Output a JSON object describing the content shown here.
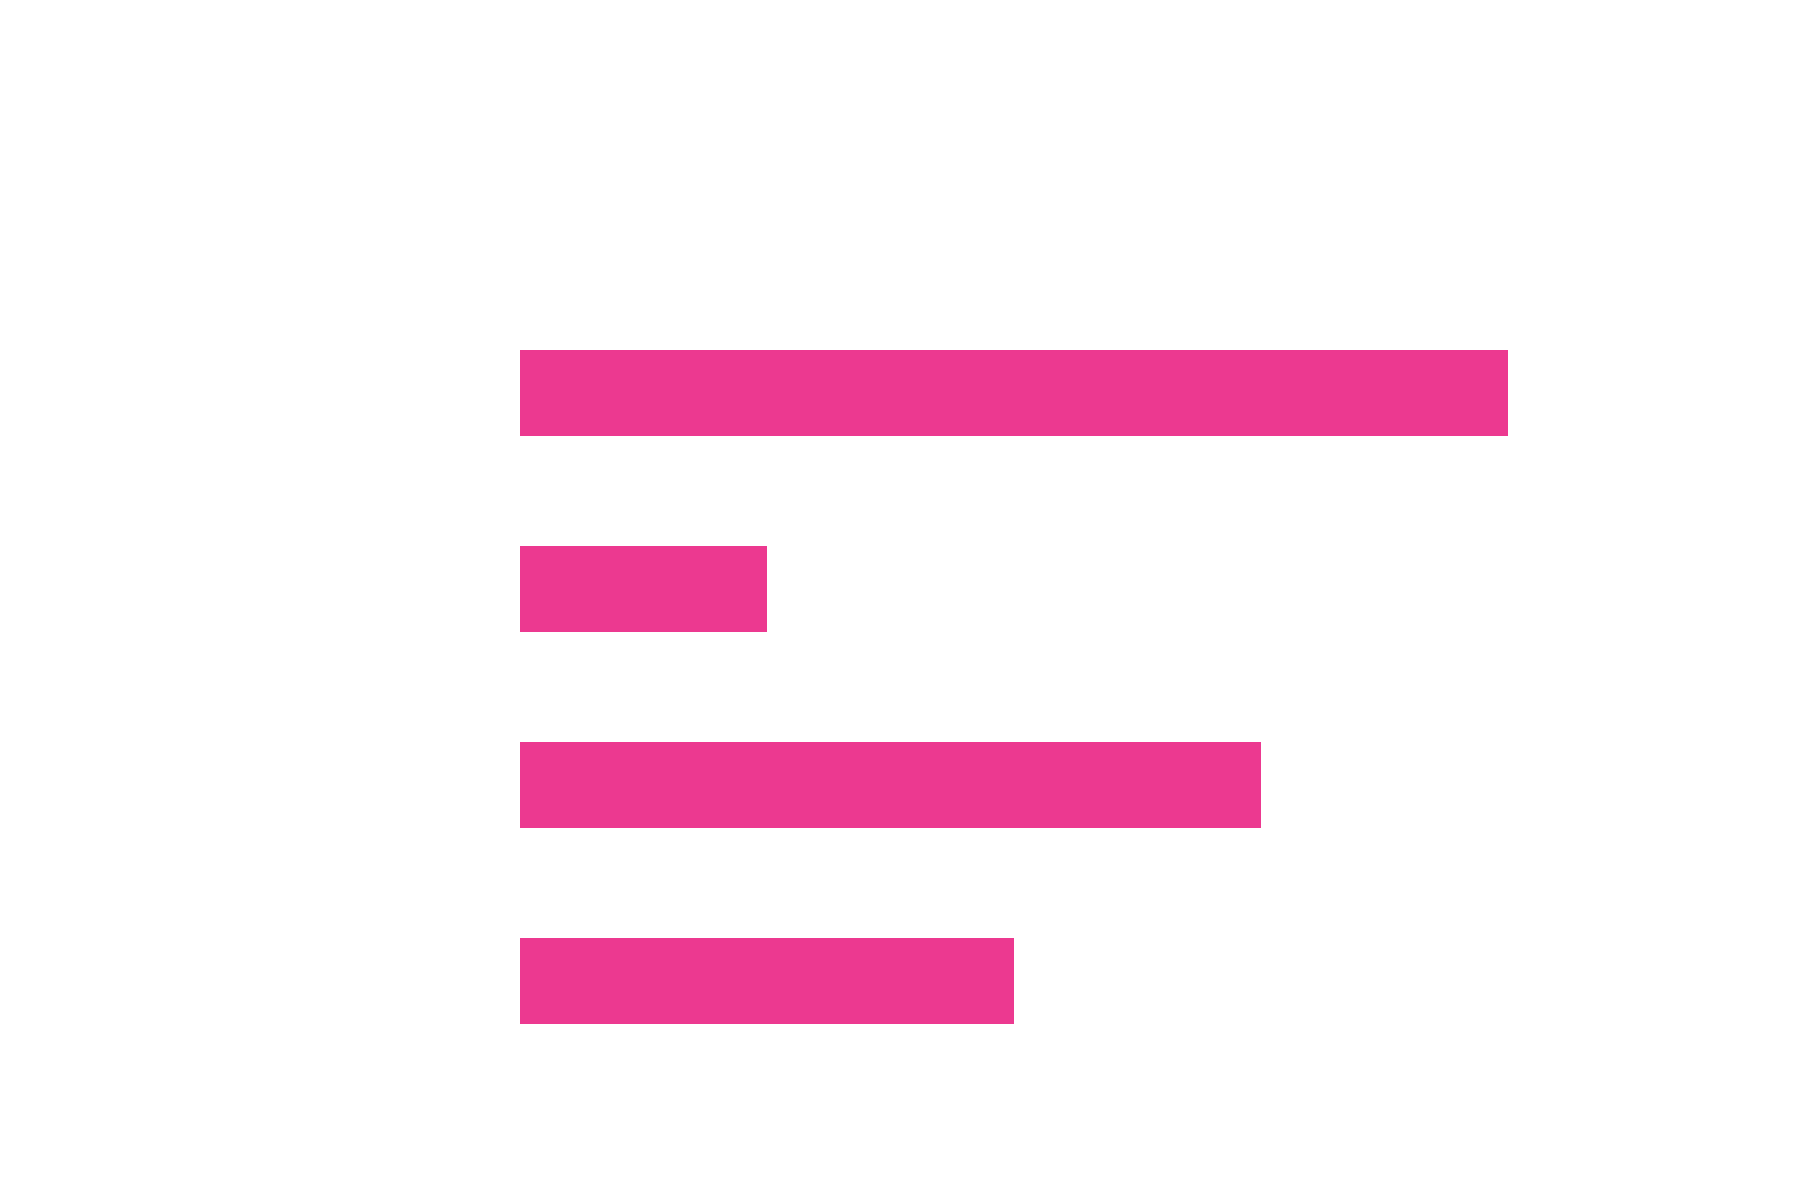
{
  "chart_data": {
    "type": "bar",
    "orientation": "horizontal",
    "values": [
      100,
      25,
      75,
      50
    ],
    "color": "#ec3990",
    "background": "#ffffff",
    "grid": false,
    "axes_visible": false
  }
}
